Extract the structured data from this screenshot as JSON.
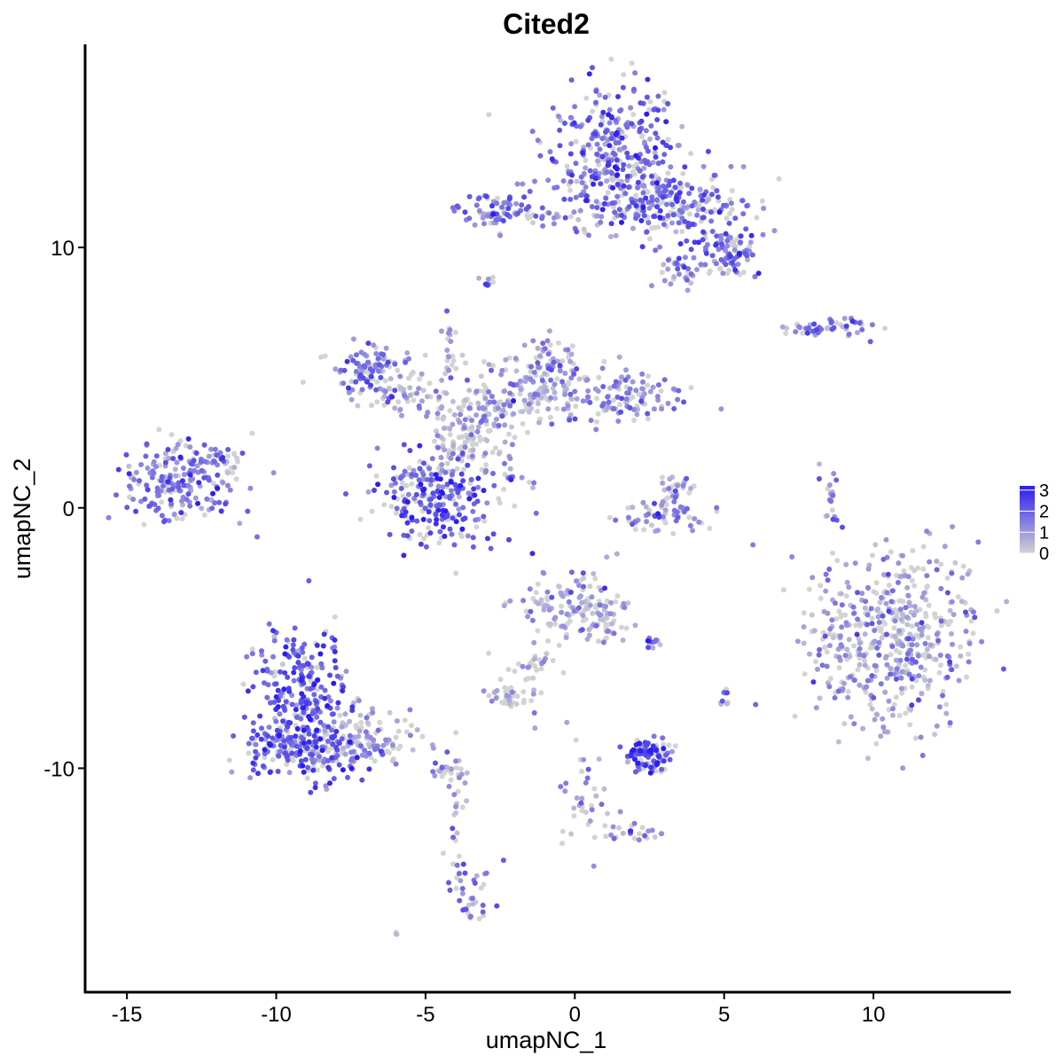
{
  "chart_data": {
    "type": "scatter",
    "title": "Cited2",
    "xlabel": "umapNC_1",
    "ylabel": "umapNC_2",
    "xlim": [
      -16.4,
      14.6
    ],
    "ylim": [
      -18.6,
      17.8
    ],
    "x_ticks": [
      -15,
      -10,
      -5,
      0,
      5,
      10
    ],
    "x_tick_labels": [
      "-15",
      "-10",
      "-5",
      "0",
      "5",
      "10"
    ],
    "y_ticks": [
      10,
      0,
      -10
    ],
    "y_tick_labels": [
      "10",
      "0",
      "-10"
    ],
    "grid": false,
    "color_scale": {
      "low": "#d3d3d3",
      "high": "#2a1cf0",
      "range": [
        0,
        3.2
      ],
      "legend_ticks": [
        3,
        2,
        1,
        0
      ],
      "legend_labels": [
        "3",
        "2",
        "1",
        "0"
      ],
      "legend_position": "right"
    },
    "clusters": [
      {
        "x": 1.3,
        "y": 13.6,
        "sx": 1.2,
        "sy": 1.3,
        "n": 320,
        "expr": 1.7
      },
      {
        "x": 3.2,
        "y": 11.6,
        "sx": 1.5,
        "sy": 0.7,
        "n": 240,
        "expr": 1.8
      },
      {
        "x": 5.2,
        "y": 9.7,
        "sx": 0.6,
        "sy": 0.5,
        "n": 90,
        "expr": 1.6
      },
      {
        "x": -2.6,
        "y": 11.5,
        "sx": 0.6,
        "sy": 0.4,
        "n": 70,
        "expr": 1.5
      },
      {
        "x": -0.8,
        "y": 11.2,
        "sx": 1.0,
        "sy": 0.2,
        "n": 30,
        "expr": 1.2
      },
      {
        "x": 3.5,
        "y": 9.0,
        "sx": 0.4,
        "sy": 0.3,
        "n": 30,
        "expr": 1.3
      },
      {
        "x": -2.9,
        "y": 8.7,
        "sx": 0.1,
        "sy": 0.1,
        "n": 8,
        "expr": 1.4
      },
      {
        "x": -7.0,
        "y": 5.4,
        "sx": 0.7,
        "sy": 0.5,
        "n": 80,
        "expr": 1.5
      },
      {
        "x": -6.2,
        "y": 4.6,
        "sx": 0.9,
        "sy": 0.6,
        "n": 60,
        "expr": 0.9
      },
      {
        "x": -3.3,
        "y": 3.6,
        "sx": 1.0,
        "sy": 0.9,
        "n": 120,
        "expr": 0.6
      },
      {
        "x": -1.5,
        "y": 4.4,
        "sx": 1.0,
        "sy": 0.7,
        "n": 110,
        "expr": 0.9
      },
      {
        "x": -0.8,
        "y": 5.3,
        "sx": 0.6,
        "sy": 0.6,
        "n": 70,
        "expr": 1.2
      },
      {
        "x": 1.6,
        "y": 4.3,
        "sx": 1.0,
        "sy": 0.5,
        "n": 110,
        "expr": 1.3
      },
      {
        "x": -4.6,
        "y": 0.3,
        "sx": 1.0,
        "sy": 0.9,
        "n": 240,
        "expr": 2.1
      },
      {
        "x": -4.0,
        "y": 2.3,
        "sx": 0.6,
        "sy": 0.6,
        "n": 50,
        "expr": 0.5
      },
      {
        "x": -4.2,
        "y": 6.2,
        "sx": 0.15,
        "sy": 0.7,
        "n": 20,
        "expr": 0.7
      },
      {
        "x": -2.0,
        "y": 1.2,
        "sx": 0.5,
        "sy": 0.3,
        "n": 15,
        "expr": 1.0
      },
      {
        "x": -13.2,
        "y": 1.0,
        "sx": 1.0,
        "sy": 0.7,
        "n": 200,
        "expr": 1.5
      },
      {
        "x": -11.8,
        "y": 1.8,
        "sx": 0.4,
        "sy": 0.5,
        "n": 30,
        "expr": 1.2
      },
      {
        "x": 3.0,
        "y": -0.3,
        "sx": 0.9,
        "sy": 0.4,
        "n": 60,
        "expr": 1.2
      },
      {
        "x": 3.3,
        "y": 0.8,
        "sx": 0.3,
        "sy": 0.4,
        "n": 25,
        "expr": 0.8
      },
      {
        "x": 8.5,
        "y": 0.3,
        "sx": 0.15,
        "sy": 0.6,
        "n": 18,
        "expr": 1.3
      },
      {
        "x": 8.9,
        "y": 6.9,
        "sx": 0.6,
        "sy": 0.2,
        "n": 40,
        "expr": 1.5
      },
      {
        "x": 7.6,
        "y": 6.8,
        "sx": 0.4,
        "sy": 0.1,
        "n": 15,
        "expr": 1.2
      },
      {
        "x": 10.7,
        "y": -5.0,
        "sx": 1.4,
        "sy": 1.7,
        "n": 520,
        "expr": 0.9
      },
      {
        "x": -0.2,
        "y": -3.8,
        "sx": 0.8,
        "sy": 0.7,
        "n": 110,
        "expr": 0.8
      },
      {
        "x": 0.9,
        "y": -4.3,
        "sx": 0.4,
        "sy": 0.5,
        "n": 45,
        "expr": 0.4
      },
      {
        "x": -1.4,
        "y": -6.2,
        "sx": 0.5,
        "sy": 0.8,
        "n": 35,
        "expr": 0.5
      },
      {
        "x": -2.4,
        "y": -7.3,
        "sx": 0.4,
        "sy": 0.3,
        "n": 30,
        "expr": 0.3
      },
      {
        "x": -9.2,
        "y": -7.1,
        "sx": 0.8,
        "sy": 1.2,
        "n": 260,
        "expr": 2.0
      },
      {
        "x": -9.2,
        "y": -9.3,
        "sx": 1.0,
        "sy": 0.6,
        "n": 180,
        "expr": 2.0
      },
      {
        "x": -7.0,
        "y": -9.0,
        "sx": 1.0,
        "sy": 0.5,
        "n": 120,
        "expr": 0.9
      },
      {
        "x": -4.4,
        "y": -10.2,
        "sx": 0.4,
        "sy": 0.2,
        "n": 25,
        "expr": 1.1
      },
      {
        "x": -3.5,
        "y": -14.7,
        "sx": 0.4,
        "sy": 0.9,
        "n": 40,
        "expr": 1.4
      },
      {
        "x": -3.9,
        "y": -11.8,
        "sx": 0.2,
        "sy": 0.8,
        "n": 15,
        "expr": 0.5
      },
      {
        "x": 2.5,
        "y": -9.5,
        "sx": 0.4,
        "sy": 0.3,
        "n": 110,
        "expr": 2.1
      },
      {
        "x": 2.6,
        "y": -5.2,
        "sx": 0.25,
        "sy": 0.1,
        "n": 12,
        "expr": 1.8
      },
      {
        "x": 0.4,
        "y": -11.0,
        "sx": 0.4,
        "sy": 1.2,
        "n": 40,
        "expr": 0.9
      },
      {
        "x": 2.3,
        "y": -12.5,
        "sx": 0.5,
        "sy": 0.2,
        "n": 20,
        "expr": 1.0
      },
      {
        "x": 5.0,
        "y": -7.3,
        "sx": 0.1,
        "sy": 0.2,
        "n": 10,
        "expr": 1.3
      },
      {
        "x": -6.0,
        "y": -16.3,
        "sx": 0.1,
        "sy": 0.1,
        "n": 3,
        "expr": 0.6
      }
    ]
  }
}
